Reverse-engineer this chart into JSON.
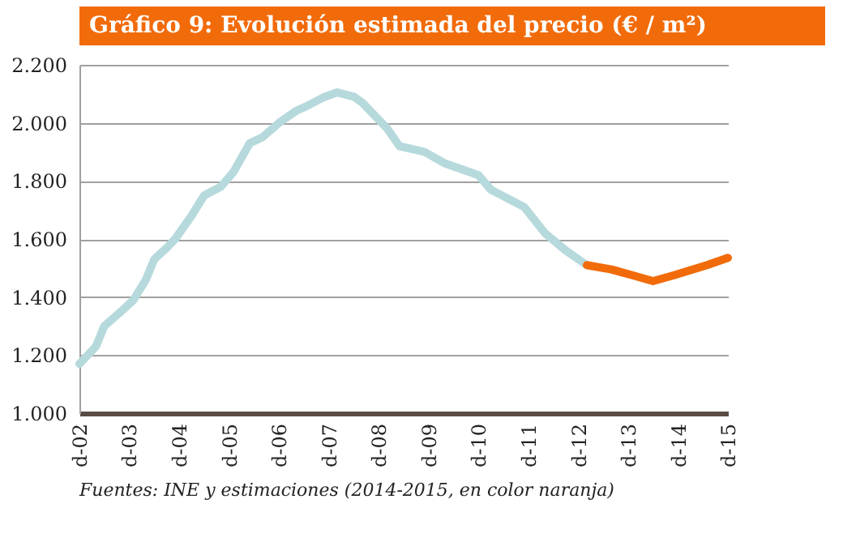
{
  "chart_data": {
    "type": "line",
    "title": "Gráfico 9: Evolución estimada del precio (€ / m²)",
    "annotations": [
      "Fuentes: INE y estimaciones (2014-2015, en color naranja)"
    ],
    "series": [
      {
        "color": "#b6d9dc",
        "x": [
          "2002-12",
          "2003-04",
          "2003-06",
          "2003-10",
          "2004-01",
          "2004-04",
          "2004-06",
          "2004-09",
          "2004-11",
          "2005-03",
          "2005-06",
          "2005-10",
          "2006-01",
          "2006-05",
          "2006-08",
          "2006-12",
          "2007-04",
          "2007-07",
          "2007-11",
          "2008-02",
          "2008-06",
          "2008-08",
          "2009-02",
          "2009-05",
          "2009-11",
          "2010-04",
          "2010-12",
          "2011-03",
          "2011-11",
          "2012-04",
          "2012-09",
          "2013-02"
        ],
        "values": [
          1170,
          1230,
          1300,
          1350,
          1390,
          1460,
          1530,
          1570,
          1600,
          1680,
          1750,
          1780,
          1830,
          1930,
          1950,
          2000,
          2040,
          2060,
          2090,
          2105,
          2090,
          2070,
          1980,
          1920,
          1900,
          1860,
          1820,
          1770,
          1710,
          1620,
          1560,
          1510
        ]
      },
      {
        "color": "#f26b0a",
        "x": [
          "2013-02",
          "2013-08",
          "2014-01",
          "2014-06",
          "2014-11",
          "2015-07",
          "2015-12"
        ],
        "values": [
          1510,
          1495,
          1475,
          1455,
          1475,
          1510,
          1535
        ]
      }
    ],
    "xlim": [
      "2002-12",
      "2015-12"
    ],
    "xticks": [
      {
        "value": "2002-12",
        "label": "d-02"
      },
      {
        "value": "2003-12",
        "label": "d-03"
      },
      {
        "value": "2004-12",
        "label": "d-04"
      },
      {
        "value": "2005-12",
        "label": "d-05"
      },
      {
        "value": "2006-12",
        "label": "d-06"
      },
      {
        "value": "2007-12",
        "label": "d-07"
      },
      {
        "value": "2008-12",
        "label": "d-08"
      },
      {
        "value": "2009-12",
        "label": "d-09"
      },
      {
        "value": "2010-12",
        "label": "d-10"
      },
      {
        "value": "2011-12",
        "label": "d-11"
      },
      {
        "value": "2012-12",
        "label": "d-12"
      },
      {
        "value": "2013-12",
        "label": "d-13"
      },
      {
        "value": "2014-12",
        "label": "d-14"
      },
      {
        "value": "2015-12",
        "label": "d-15"
      }
    ],
    "ylim": [
      1000,
      2200
    ],
    "yticks": [
      {
        "value": 1000,
        "label": "1.000"
      },
      {
        "value": 1200,
        "label": "1.200"
      },
      {
        "value": 1400,
        "label": "1.400"
      },
      {
        "value": 1600,
        "label": "1.600"
      },
      {
        "value": 1800,
        "label": "1.800"
      },
      {
        "value": 2000,
        "label": "2.000"
      },
      {
        "value": 2200,
        "label": "2.200"
      }
    ],
    "grid": "y",
    "legend": false,
    "marker": "none",
    "line_style": "solid"
  }
}
